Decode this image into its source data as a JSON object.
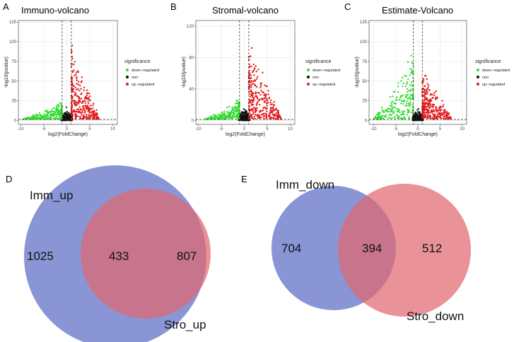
{
  "colors": {
    "down": "#33dd33",
    "non": "#111111",
    "up": "#e41a1c",
    "venn_left": "#5b6cc4",
    "venn_right": "#e06870",
    "grid": "#e6e6e6"
  },
  "chart_data": [
    {
      "type": "scatter",
      "panel": "A",
      "title": "Immuno-volcano",
      "xlabel": "log2(FoldChange)",
      "ylabel": "-log10(pvalue)",
      "xlim": [
        -10.5,
        11
      ],
      "ylim": [
        -5,
        127
      ],
      "xticks": [
        -10,
        -5,
        0,
        5,
        10
      ],
      "yticks": [
        0,
        25,
        50,
        75,
        100,
        125
      ],
      "fc_threshold": [
        -1,
        1
      ],
      "p_threshold": 1.3,
      "legend": {
        "title": "significance",
        "entries": [
          "down−regulated",
          "non",
          "up−regulated"
        ]
      },
      "series_params": {
        "down_max": 28,
        "up_max": 108,
        "down_xmin": -9.5,
        "up_xmax": 7
      }
    },
    {
      "type": "scatter",
      "panel": "B",
      "title": "Stromal-volcano",
      "xlabel": "log2(FoldChange)",
      "ylabel": "-log10(pvalue)",
      "xlim": [
        -10.5,
        11
      ],
      "ylim": [
        -5,
        127
      ],
      "xticks": [
        -10,
        -5,
        0,
        5,
        10
      ],
      "yticks": [
        0,
        40,
        80,
        120
      ],
      "fc_threshold": [
        -1,
        1
      ],
      "p_threshold": 1.3,
      "legend": {
        "title": "significance",
        "entries": [
          "down−regulated",
          "non",
          "up−regulated"
        ]
      },
      "series_params": {
        "down_max": 32,
        "up_max": 122,
        "down_xmin": -8.5,
        "up_xmax": 8
      }
    },
    {
      "type": "scatter",
      "panel": "C",
      "title": "Estimate-Volcano",
      "xlabel": "log2(FoldChange)",
      "ylabel": "-log10(pvalue)",
      "xlim": [
        -11,
        11
      ],
      "ylim": [
        -5,
        127
      ],
      "xticks": [
        -10,
        -5,
        0,
        5,
        10
      ],
      "yticks": [
        0,
        25,
        50,
        75,
        100,
        125
      ],
      "fc_threshold": [
        -1,
        1
      ],
      "p_threshold": 1.3,
      "legend": {
        "title": "significance",
        "entries": [
          "down−regulated",
          "non",
          "up−regulated"
        ]
      },
      "series_params": {
        "down_max": 102,
        "up_max": 78,
        "down_xmin": -10,
        "up_xmax": 7.5
      }
    },
    {
      "type": "venn",
      "panel": "D",
      "sets": [
        "Imm_up",
        "Stro_up"
      ],
      "only_left": 1025,
      "overlap": 433,
      "only_right": 807
    },
    {
      "type": "venn",
      "panel": "E",
      "sets": [
        "Imm_down",
        "Stro_down"
      ],
      "only_left": 704,
      "overlap": 394,
      "only_right": 512
    }
  ]
}
